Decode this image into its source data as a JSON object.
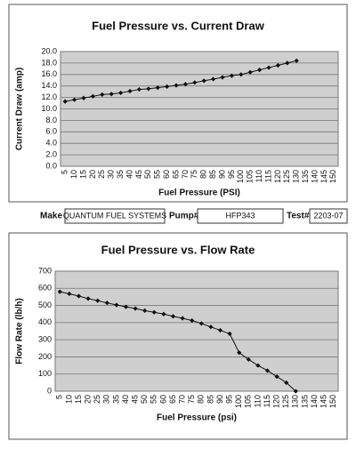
{
  "chart_data": [
    {
      "type": "line",
      "title": "Fuel Pressure vs. Current Draw",
      "x_label": "Fuel Pressure (PSI)",
      "y_label": "Current Draw (amp)",
      "categories": [
        "5",
        "10",
        "15",
        "20",
        "25",
        "30",
        "35",
        "40",
        "45",
        "50",
        "55",
        "60",
        "65",
        "70",
        "75",
        "80",
        "85",
        "90",
        "95",
        "100",
        "105",
        "110",
        "115",
        "120",
        "125",
        "130",
        "135",
        "140",
        "145",
        "150"
      ],
      "values": [
        11.3,
        11.6,
        11.9,
        12.2,
        12.5,
        12.6,
        12.8,
        13.1,
        13.4,
        13.5,
        13.7,
        13.9,
        14.1,
        14.3,
        14.6,
        14.9,
        15.2,
        15.5,
        15.8,
        16.0,
        16.4,
        16.8,
        17.2,
        17.6,
        18.0,
        18.4,
        null,
        null,
        null,
        null
      ],
      "color": "#111111",
      "ylim": [
        0,
        20
      ],
      "yticks": [
        {
          "value": 0,
          "label": "0.0"
        },
        {
          "value": 2,
          "label": "2.0"
        },
        {
          "value": 4,
          "label": "4.0"
        },
        {
          "value": 6,
          "label": "6.0"
        },
        {
          "value": 8,
          "label": "8.0"
        },
        {
          "value": 10,
          "label": "10.0"
        },
        {
          "value": 12,
          "label": "12.0"
        },
        {
          "value": 14,
          "label": "14.0"
        },
        {
          "value": 16,
          "label": "16.0"
        },
        {
          "value": 18,
          "label": "18.0"
        },
        {
          "value": 20,
          "label": "20.0"
        }
      ],
      "grid": true
    },
    {
      "type": "line",
      "title": "Fuel Pressure vs. Flow Rate",
      "x_label": "Fuel Pressure (psi)",
      "y_label": "Flow Rate (lb/h)",
      "categories": [
        "5",
        "10",
        "15",
        "20",
        "25",
        "30",
        "35",
        "40",
        "45",
        "50",
        "55",
        "60",
        "65",
        "70",
        "75",
        "80",
        "85",
        "90",
        "95",
        "100",
        "105",
        "110",
        "115",
        "120",
        "125",
        "130",
        "135",
        "140",
        "145",
        "150"
      ],
      "values": [
        580,
        568,
        555,
        540,
        528,
        515,
        503,
        492,
        482,
        470,
        460,
        450,
        437,
        425,
        412,
        395,
        375,
        355,
        335,
        225,
        185,
        150,
        120,
        85,
        50,
        0,
        null,
        null,
        null,
        null
      ],
      "color": "#111111",
      "ylim": [
        0,
        700
      ],
      "yticks": [
        0,
        100,
        200,
        300,
        400,
        500,
        600,
        700
      ],
      "grid": true
    }
  ],
  "form": {
    "make_label": "Make",
    "make": "QUANTUM FUEL SYSTEMS",
    "pump_label": "Pump#",
    "pump": "HFP343",
    "test_label": "Test#",
    "test": "2203-07"
  }
}
